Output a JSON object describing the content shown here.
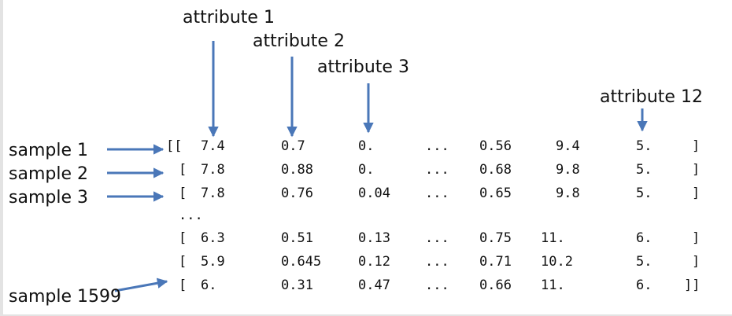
{
  "attribute_labels": [
    "attribute 1",
    "attribute 2",
    "attribute 3",
    "attribute 12"
  ],
  "sample_labels": [
    "sample 1",
    "sample 2",
    "sample 3",
    "sample 1599"
  ],
  "ellipsis_row": "...",
  "column_ellipsis": "...",
  "matrix_rows": [
    {
      "open": "[[",
      "values": [
        "7.4",
        "0.7",
        "0.",
        "0.56",
        "9.4",
        "5."
      ],
      "close": "]"
    },
    {
      "open": "[",
      "values": [
        "7.8",
        "0.88",
        "0.",
        "0.68",
        "9.8",
        "5."
      ],
      "close": "]"
    },
    {
      "open": "[",
      "values": [
        "7.8",
        "0.76",
        "0.04",
        "0.65",
        "9.8",
        "5."
      ],
      "close": "]"
    },
    {
      "open": "[",
      "values": [
        "6.3",
        "0.51",
        "0.13",
        "0.75",
        "11.",
        "6."
      ],
      "close": "]"
    },
    {
      "open": "[",
      "values": [
        "5.9",
        "0.645",
        "0.12",
        "0.71",
        "10.2",
        "5."
      ],
      "close": "]"
    },
    {
      "open": "[",
      "values": [
        "6.",
        "0.31",
        "0.47",
        "0.66",
        "11.",
        "6."
      ],
      "close": "]]"
    }
  ],
  "colors": {
    "arrow": "#4a77b8",
    "text": "#111111"
  }
}
